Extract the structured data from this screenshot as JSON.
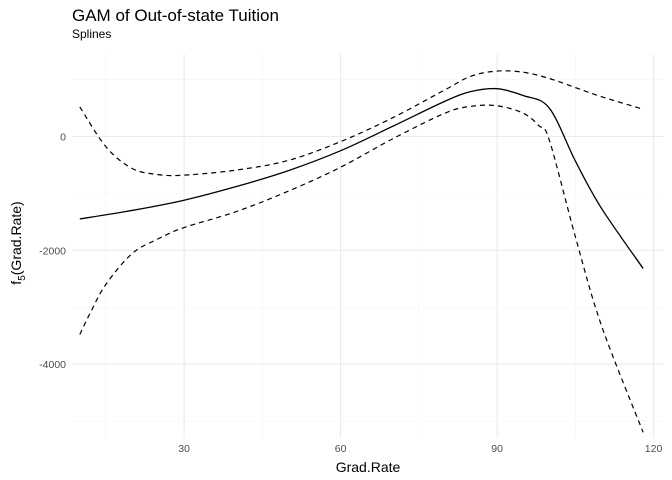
{
  "chart_data": {
    "type": "line",
    "title": "GAM of Out-of-state Tuition",
    "subtitle": "Splines",
    "xlabel": "Grad.Rate",
    "ylabel_main": "f",
    "ylabel_sub": "5",
    "ylabel_arg": "(Grad.Rate)",
    "xlim": [
      8.5,
      122
    ],
    "ylim": [
      -5300,
      1450
    ],
    "xticks": [
      30,
      60,
      90,
      120
    ],
    "xtick_labels": [
      "30",
      "60",
      "90",
      "120"
    ],
    "yticks": [
      -4000,
      -2000,
      0
    ],
    "ytick_labels": [
      "-4000",
      "-2000",
      "0"
    ],
    "grid": true,
    "series": [
      {
        "role": "fit",
        "x": [
          10,
          20,
          30,
          40,
          50,
          60,
          70,
          80,
          85,
          90,
          95,
          100,
          105,
          110,
          118
        ],
        "y": [
          -1450,
          -1300,
          -1120,
          -880,
          -600,
          -250,
          180,
          620,
          790,
          840,
          720,
          500,
          -430,
          -1260,
          -2320
        ]
      },
      {
        "role": "upper",
        "x": [
          10,
          15,
          20,
          25,
          30,
          40,
          50,
          60,
          70,
          80,
          85,
          90,
          95,
          100,
          105,
          110,
          118
        ],
        "y": [
          520,
          -180,
          -560,
          -670,
          -680,
          -590,
          -420,
          -90,
          330,
          820,
          1060,
          1150,
          1130,
          1020,
          860,
          700,
          480
        ]
      },
      {
        "role": "lower",
        "x": [
          10,
          12,
          15,
          20,
          25,
          30,
          40,
          50,
          60,
          70,
          80,
          85,
          90,
          95,
          98,
          100,
          105,
          110,
          118
        ],
        "y": [
          -3480,
          -3100,
          -2600,
          -2060,
          -1800,
          -1600,
          -1320,
          -960,
          -540,
          -40,
          410,
          530,
          540,
          410,
          190,
          -60,
          -1760,
          -3320,
          -5200
        ]
      }
    ]
  }
}
